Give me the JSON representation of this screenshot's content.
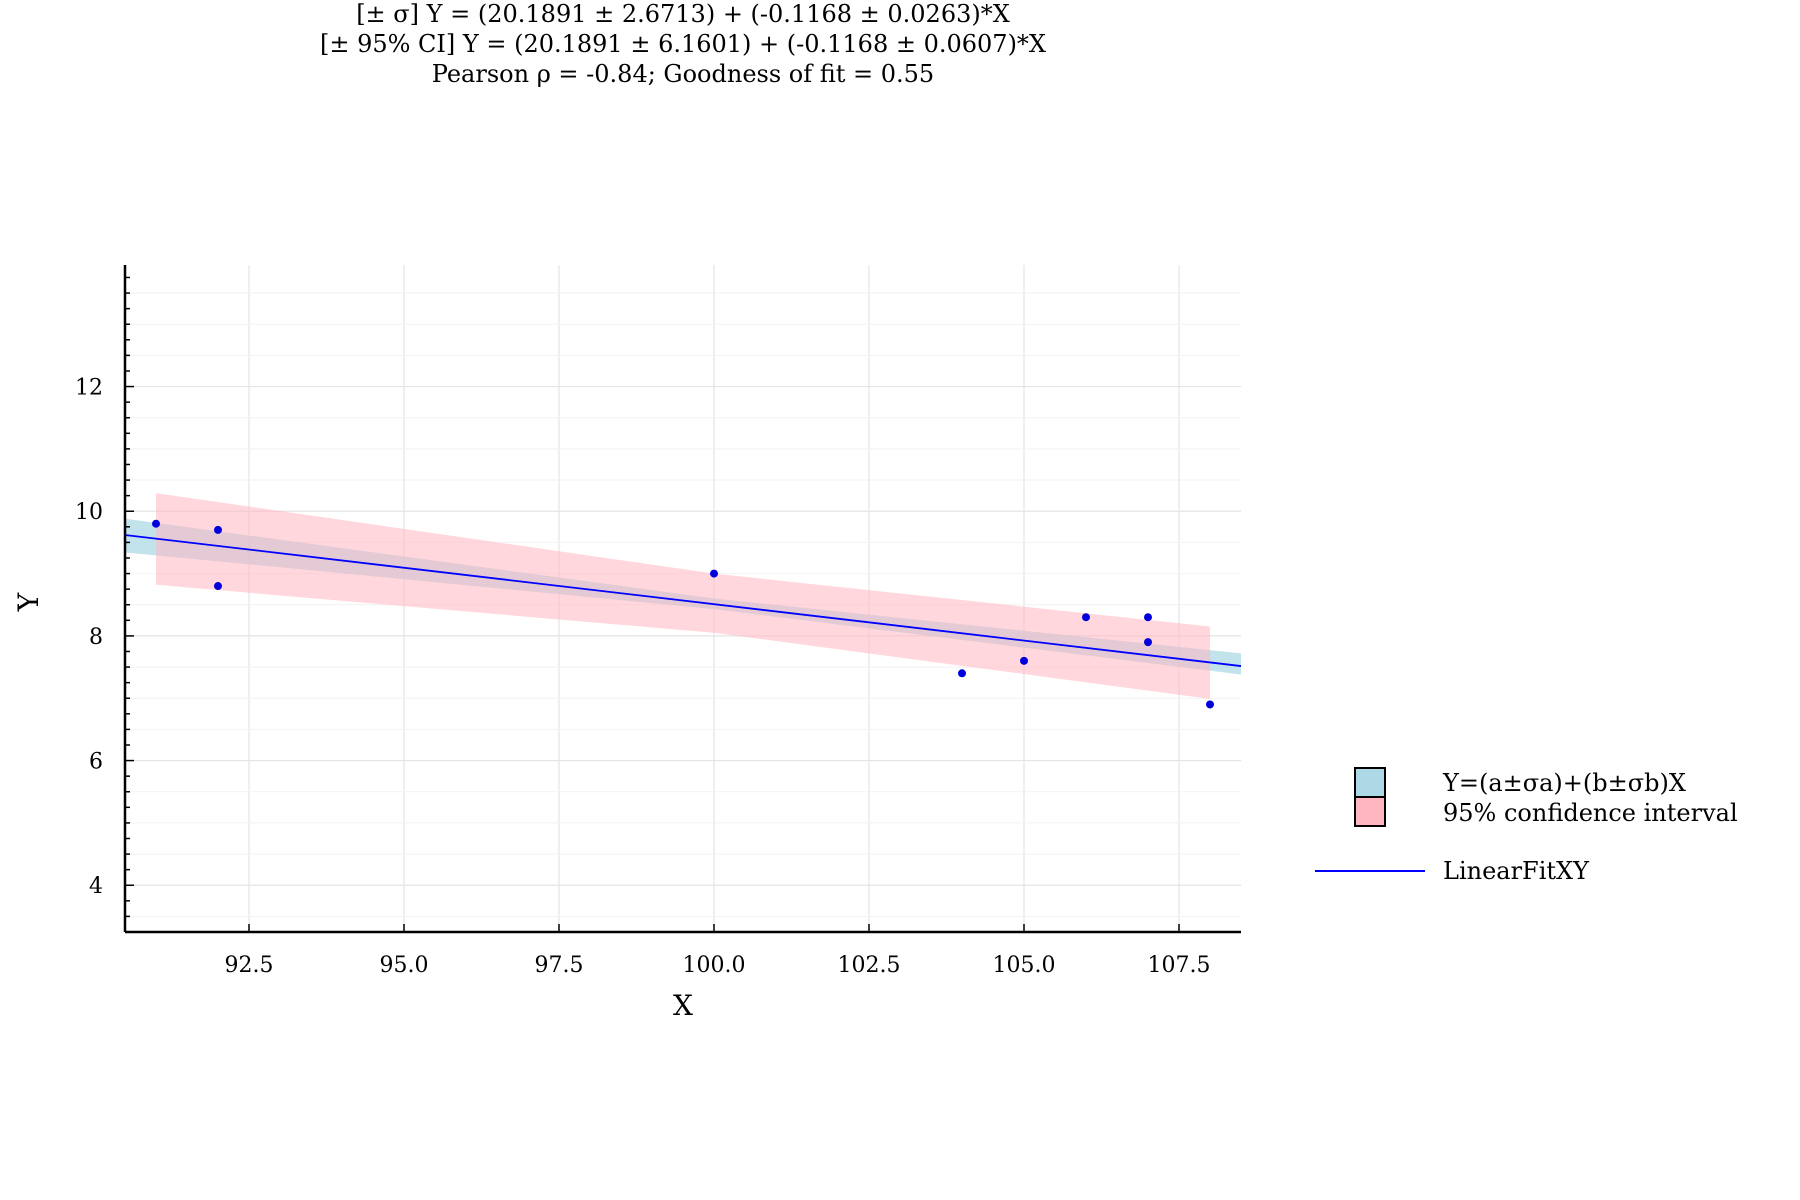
{
  "chart_data": {
    "type": "scatter",
    "title_lines": [
      "[± σ]  Y = (20.1891 ± 2.6713) + (-0.1168 ± 0.0263)*X",
      "[± 95% CI]  Y = (20.1891 ± 6.1601) + (-0.1168 ± 0.0607)*X",
      "Pearson ρ = -0.84; Goodness of fit = 0.55"
    ],
    "xlabel": "X",
    "ylabel": "Y",
    "xlim": [
      90.5,
      108.5
    ],
    "ylim": [
      3.25,
      13.95
    ],
    "x_ticks": [
      92.5,
      95.0,
      97.5,
      100.0,
      102.5,
      105.0,
      107.5
    ],
    "x_tick_labels": [
      "92.5",
      "95.0",
      "97.5",
      "100.0",
      "102.5",
      "105.0",
      "107.5"
    ],
    "y_ticks": [
      4,
      6,
      8,
      10,
      12
    ],
    "y_tick_labels": [
      "4",
      "6",
      "8",
      "10",
      "12"
    ],
    "grid": true,
    "points": {
      "x": [
        91,
        92,
        92,
        100,
        104,
        105,
        106,
        107,
        107,
        108
      ],
      "y": [
        9.8,
        9.7,
        8.8,
        9.0,
        7.4,
        7.6,
        8.3,
        8.3,
        7.9,
        6.9
      ],
      "color": "#0000dd"
    },
    "fit": {
      "intercept": 20.1891,
      "slope": -0.1168,
      "color": "#0000ff"
    },
    "sigma_band": {
      "x": [
        90.5,
        100.0,
        108.5
      ],
      "upper": [
        9.88,
        8.6,
        7.72
      ],
      "lower": [
        9.34,
        8.43,
        7.38
      ],
      "color": "#add8e6"
    },
    "ci_band": {
      "x": [
        91,
        100,
        108
      ],
      "upper": [
        10.29,
        9.0,
        8.15
      ],
      "lower": [
        8.82,
        8.05,
        6.99
      ],
      "color": "#ffb6c1"
    },
    "legend": {
      "placement": "right",
      "items": [
        {
          "label": "Y=(a±σa)+(b±σb)X",
          "kind": "box",
          "color": "#add8e6"
        },
        {
          "label": "95% confidence interval",
          "kind": "box",
          "color": "#ffb6c1"
        },
        {
          "label": "LinearFitXY",
          "kind": "line",
          "color": "#0000ff"
        }
      ]
    }
  }
}
